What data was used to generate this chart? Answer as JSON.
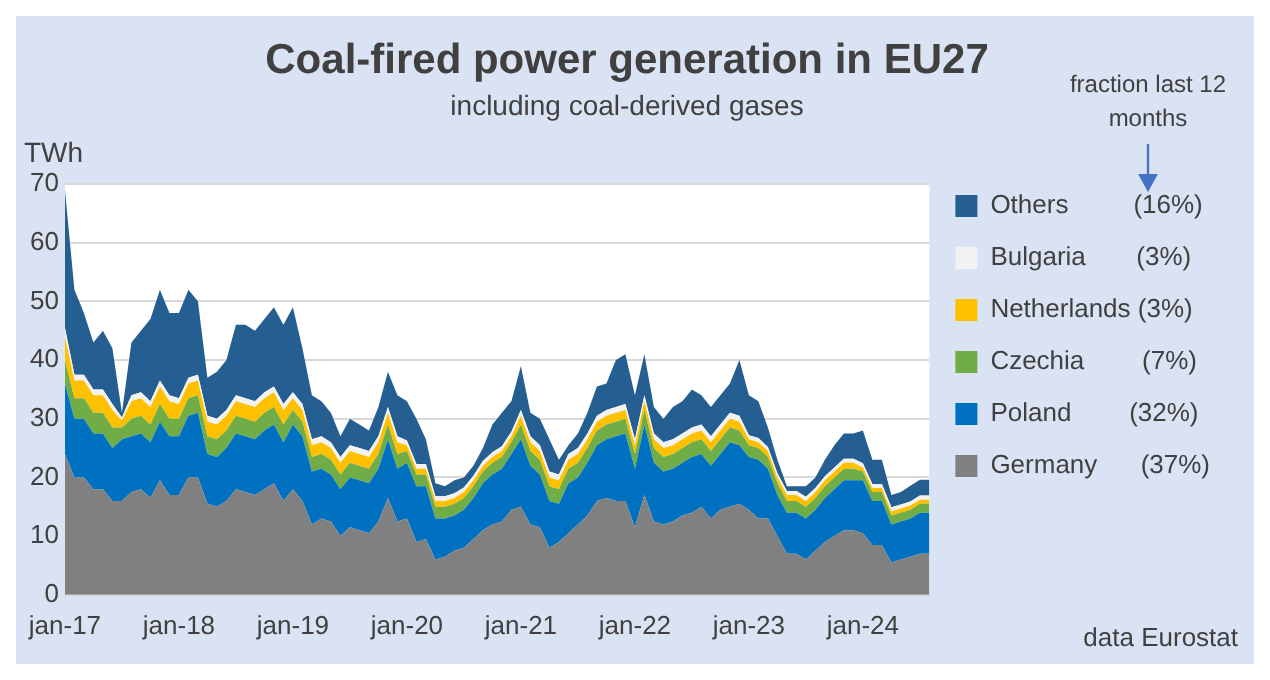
{
  "chart_data": {
    "type": "area",
    "title": "Coal-fired power generation in EU27",
    "subtitle": "including coal-derived gases",
    "ylabel": "TWh",
    "annotations": [
      "fraction last 12 months",
      "data Eurostat"
    ],
    "stacked": true,
    "grid": "y",
    "legend": "right",
    "xlim": [
      "2017-01",
      "2024-08"
    ],
    "ylim": [
      0,
      70
    ],
    "yticks": [
      0,
      10,
      20,
      30,
      40,
      50,
      60,
      70
    ],
    "xticks": [
      {
        "value": "2017-01",
        "label": "jan-17"
      },
      {
        "value": "2018-01",
        "label": "jan-18"
      },
      {
        "value": "2019-01",
        "label": "jan-19"
      },
      {
        "value": "2020-01",
        "label": "jan-20"
      },
      {
        "value": "2021-01",
        "label": "jan-21"
      },
      {
        "value": "2022-01",
        "label": "jan-22"
      },
      {
        "value": "2023-01",
        "label": "jan-23"
      },
      {
        "value": "2024-01",
        "label": "jan-24"
      }
    ],
    "x": [
      "2017-01",
      "2017-02",
      "2017-03",
      "2017-04",
      "2017-05",
      "2017-06",
      "2017-07",
      "2017-08",
      "2017-09",
      "2017-10",
      "2017-11",
      "2017-12",
      "2018-01",
      "2018-02",
      "2018-03",
      "2018-04",
      "2018-05",
      "2018-06",
      "2018-07",
      "2018-08",
      "2018-09",
      "2018-10",
      "2018-11",
      "2018-12",
      "2019-01",
      "2019-02",
      "2019-03",
      "2019-04",
      "2019-05",
      "2019-06",
      "2019-07",
      "2019-08",
      "2019-09",
      "2019-10",
      "2019-11",
      "2019-12",
      "2020-01",
      "2020-02",
      "2020-03",
      "2020-04",
      "2020-05",
      "2020-06",
      "2020-07",
      "2020-08",
      "2020-09",
      "2020-10",
      "2020-11",
      "2020-12",
      "2021-01",
      "2021-02",
      "2021-03",
      "2021-04",
      "2021-05",
      "2021-06",
      "2021-07",
      "2021-08",
      "2021-09",
      "2021-10",
      "2021-11",
      "2021-12",
      "2022-01",
      "2022-02",
      "2022-03",
      "2022-04",
      "2022-05",
      "2022-06",
      "2022-07",
      "2022-08",
      "2022-09",
      "2022-10",
      "2022-11",
      "2022-12",
      "2023-01",
      "2023-02",
      "2023-03",
      "2023-04",
      "2023-05",
      "2023-06",
      "2023-07",
      "2023-08",
      "2023-09",
      "2023-10",
      "2023-11",
      "2023-12",
      "2024-01",
      "2024-02",
      "2024-03",
      "2024-04",
      "2024-05",
      "2024-06",
      "2024-07",
      "2024-08"
    ],
    "series": [
      {
        "name": "Germany      (37%)",
        "color": "#808080",
        "values": [
          24,
          20,
          20,
          18,
          18,
          16,
          16,
          17.5,
          18,
          16.5,
          19.5,
          17,
          17,
          20,
          20,
          15.5,
          15,
          16,
          18,
          17.5,
          17,
          18,
          19,
          16,
          18,
          16,
          12,
          13,
          12.5,
          10,
          11.5,
          11,
          10.5,
          12.5,
          16.5,
          12.5,
          13,
          9,
          9.5,
          6,
          6.5,
          7.5,
          8,
          9.5,
          11,
          12,
          12.5,
          14.5,
          15,
          12,
          11.5,
          8,
          9,
          10.5,
          12,
          13.5,
          16,
          16.5,
          16,
          16,
          11.5,
          17,
          12.5,
          12,
          12.5,
          13.5,
          14,
          15,
          13,
          14.5,
          15,
          15.5,
          14.5,
          13,
          13,
          10,
          7,
          7,
          6,
          7.5,
          9,
          10,
          11,
          11,
          10.5,
          8.5,
          8.5,
          5.5,
          6,
          6.5,
          7,
          7
        ]
      },
      {
        "name": "Poland        (32%)",
        "color": "#0070c0",
        "values": [
          12,
          10,
          10,
          9.5,
          9.5,
          9,
          10.5,
          9.5,
          9.5,
          9.5,
          10,
          10,
          10,
          10.5,
          11,
          8.5,
          8.5,
          9,
          9.5,
          9.5,
          9.5,
          10,
          10,
          10,
          11,
          11,
          9,
          8.5,
          8,
          8,
          8.5,
          8.5,
          8.5,
          9,
          10,
          9,
          9.5,
          9.5,
          9,
          7,
          6.5,
          6,
          6.5,
          7,
          8,
          8.5,
          9,
          9.5,
          11.5,
          10,
          9,
          8,
          6.5,
          8.5,
          8,
          9,
          9.5,
          10,
          11,
          11.5,
          10,
          12,
          10,
          9,
          9,
          9,
          9.5,
          9,
          9,
          9.5,
          11,
          10,
          9,
          10,
          8.5,
          7,
          7,
          7,
          7,
          7,
          7.5,
          8,
          8.5,
          8.5,
          9,
          7.5,
          7.5,
          6.5,
          6.5,
          6.5,
          7,
          7
        ]
      },
      {
        "name": "Czechia        (7%)",
        "color": "#70ad47",
        "values": [
          4,
          3.5,
          3.5,
          3.5,
          3.5,
          3.5,
          2,
          3,
          3,
          3,
          3,
          3,
          3,
          3,
          3,
          3,
          3,
          3,
          3,
          3,
          3,
          3,
          3,
          3,
          2.5,
          2.5,
          2.5,
          2.5,
          2.5,
          2.5,
          2.5,
          2.5,
          2.5,
          2.5,
          2.5,
          2.5,
          2,
          2,
          2,
          2,
          2,
          2,
          2,
          2,
          2,
          2,
          2,
          2,
          2.5,
          2.5,
          2.5,
          2.5,
          2.5,
          2.5,
          2.5,
          2.5,
          2.5,
          2.5,
          2.5,
          2.5,
          2.5,
          2.5,
          2.5,
          2.5,
          2.5,
          2.5,
          2.5,
          2.5,
          2.5,
          2.5,
          2.5,
          2.5,
          2,
          2,
          2,
          2,
          2,
          2,
          2,
          2,
          2,
          2,
          2,
          2,
          1.5,
          1.5,
          1.5,
          1.5,
          1.5,
          1.5,
          1.5,
          1.5
        ]
      },
      {
        "name": "Netherlands (3%)",
        "color": "#ffc000",
        "values": [
          4,
          3,
          3,
          3,
          3,
          3,
          1.2,
          3,
          3,
          3,
          3,
          3,
          2.5,
          2.5,
          2.5,
          2.5,
          2.5,
          2.5,
          2.5,
          2.5,
          2.5,
          2.5,
          2.5,
          2.5,
          2,
          2,
          2,
          2,
          2,
          2,
          2,
          2,
          2,
          2,
          2,
          2,
          1,
          1,
          1,
          1,
          1,
          1,
          1,
          1,
          1,
          1,
          1,
          1,
          1.5,
          1.5,
          1.5,
          1.5,
          1.5,
          1.5,
          1.5,
          1.5,
          1.5,
          1.5,
          1.5,
          1.5,
          1.5,
          1.5,
          1.5,
          1.5,
          1.5,
          1.5,
          1.5,
          1.5,
          1.5,
          1.5,
          1.5,
          1.5,
          1,
          1,
          1,
          1,
          1,
          1,
          1,
          1,
          1,
          1,
          1,
          1,
          0.7,
          0.7,
          0.7,
          0.7,
          0.7,
          0.7,
          0.7,
          0.7
        ]
      },
      {
        "name": "Bulgaria       (3%)",
        "color": "#f2f2f2",
        "values": [
          1.5,
          1,
          1,
          1,
          1,
          1,
          0.5,
          1,
          1,
          1,
          1,
          1,
          1,
          1,
          1,
          1,
          1,
          1,
          1,
          1,
          1,
          1,
          1,
          1,
          1,
          1,
          1,
          1,
          1,
          1,
          1,
          1,
          1,
          1,
          1,
          1,
          0.8,
          0.8,
          0.8,
          0.8,
          0.8,
          0.8,
          0.8,
          0.8,
          0.8,
          0.8,
          0.8,
          0.8,
          1,
          1,
          1,
          1,
          1,
          1,
          1,
          1,
          1,
          1,
          1,
          1,
          1,
          1,
          1,
          1,
          1,
          1,
          1,
          1,
          1,
          1,
          1,
          1,
          0.7,
          0.7,
          0.7,
          0.7,
          0.7,
          0.7,
          0.7,
          0.7,
          0.7,
          0.7,
          0.7,
          0.7,
          0.7,
          0.7,
          0.7,
          0.7,
          0.7,
          0.7,
          0.7,
          0.7
        ]
      },
      {
        "name": "Others         (16%)",
        "color": "#255e91",
        "values": [
          23.5,
          14.5,
          10.5,
          8,
          10,
          9.5,
          0.8,
          9,
          10.5,
          14,
          15.5,
          14,
          14.5,
          15,
          12.5,
          6.5,
          8,
          8.5,
          12,
          12.5,
          12,
          12.5,
          13.5,
          13.5,
          14.5,
          9.5,
          7.5,
          6,
          5,
          3.5,
          4.5,
          4,
          3.5,
          5,
          6,
          7,
          6.7,
          7.7,
          4.2,
          2.2,
          1.7,
          2.2,
          1.7,
          1.7,
          2.2,
          4.7,
          5.7,
          5.2,
          7.5,
          4,
          4.5,
          5.5,
          2.5,
          1.5,
          2.5,
          3.5,
          5,
          4.5,
          8,
          8.5,
          7.5,
          7,
          4.5,
          4,
          5.5,
          5.5,
          6.5,
          5,
          5,
          5,
          5,
          9.5,
          6.8,
          6.3,
          3.3,
          2.3,
          0.8,
          0.8,
          1.8,
          1.8,
          2.8,
          3.8,
          4.3,
          4.3,
          5.6,
          4.1,
          4.1,
          2.1,
          2.1,
          2.7,
          2.7,
          2.7
        ]
      }
    ]
  }
}
